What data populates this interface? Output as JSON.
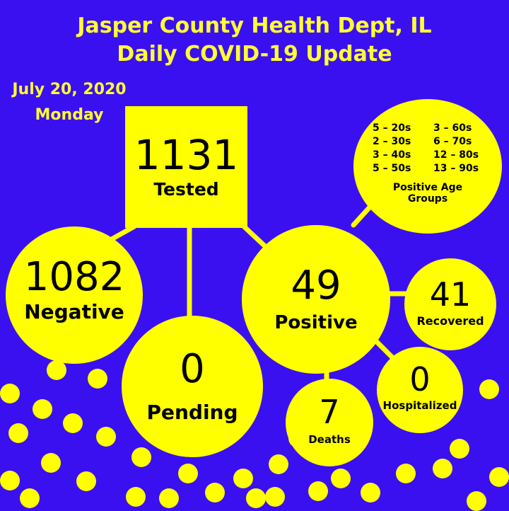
{
  "header": {
    "title_line1": "Jasper County Health Dept, IL",
    "title_line2": "Daily COVID-19 Update",
    "date": "July 20, 2020",
    "weekday": "Monday"
  },
  "stats": {
    "tested": {
      "value": "1131",
      "label": "Tested"
    },
    "negative": {
      "value": "1082",
      "label": "Negative"
    },
    "pending": {
      "value": "0",
      "label": "Pending"
    },
    "positive": {
      "value": "49",
      "label": "Positive"
    },
    "recovered": {
      "value": "41",
      "label": "Recovered"
    },
    "hospitalized": {
      "value": "0",
      "label": "Hospitalized"
    },
    "deaths": {
      "value": "7",
      "label": "Deaths"
    }
  },
  "age_groups": {
    "title": "Positive Age Groups",
    "entries": [
      "5 – 20s",
      "3 – 60s",
      "2 – 30s",
      "6 – 70s",
      "3 – 40s",
      "12 – 80s",
      "5 – 50s",
      "13 – 90s"
    ]
  },
  "colors": {
    "background": "#3A10F0",
    "accent": "#FFFF00",
    "title_text": "#FFFF33"
  }
}
